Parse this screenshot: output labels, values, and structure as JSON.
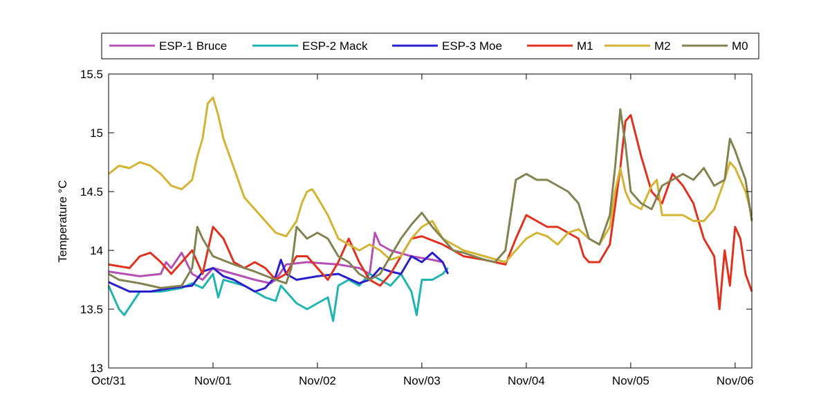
{
  "chart_data": {
    "type": "line",
    "title": "",
    "xlabel": "",
    "ylabel": "Temperature °C",
    "xlim": [
      0,
      6.16
    ],
    "ylim": [
      13,
      15.5
    ],
    "x_unit": "days since Oct/31",
    "xticks": [
      {
        "value": 0,
        "label": "Oct/31"
      },
      {
        "value": 1,
        "label": "Nov/01"
      },
      {
        "value": 2,
        "label": "Nov/02"
      },
      {
        "value": 3,
        "label": "Nov/03"
      },
      {
        "value": 4,
        "label": "Nov/04"
      },
      {
        "value": 5,
        "label": "Nov/05"
      },
      {
        "value": 6,
        "label": "Nov/06"
      }
    ],
    "yticks": [
      {
        "value": 13,
        "label": "13"
      },
      {
        "value": 13.5,
        "label": "13.5"
      },
      {
        "value": 14,
        "label": "14"
      },
      {
        "value": 14.5,
        "label": "14.5"
      },
      {
        "value": 15,
        "label": "15"
      },
      {
        "value": 15.5,
        "label": "15.5"
      }
    ],
    "grid": false,
    "legend_position": "top-outside",
    "series": [
      {
        "name": "ESP-1 Bruce",
        "color": "#b450b4",
        "points": [
          [
            0,
            13.82
          ],
          [
            0.3,
            13.78
          ],
          [
            0.5,
            13.8
          ],
          [
            0.55,
            13.9
          ],
          [
            0.6,
            13.85
          ],
          [
            0.7,
            13.98
          ],
          [
            0.8,
            13.8
          ],
          [
            0.9,
            13.75
          ],
          [
            1.0,
            13.85
          ],
          [
            1.2,
            13.8
          ],
          [
            1.4,
            13.75
          ],
          [
            1.55,
            13.72
          ],
          [
            1.6,
            13.75
          ],
          [
            1.7,
            13.88
          ],
          [
            1.9,
            13.9
          ],
          [
            2.2,
            13.88
          ],
          [
            2.4,
            13.85
          ],
          [
            2.5,
            13.8
          ],
          [
            2.55,
            14.15
          ],
          [
            2.6,
            14.05
          ],
          [
            2.7,
            14.0
          ],
          [
            2.9,
            13.95
          ],
          [
            3.1,
            13.92
          ],
          [
            3.2,
            13.9
          ]
        ]
      },
      {
        "name": "ESP-2 Mack",
        "color": "#20b4b0",
        "points": [
          [
            0,
            13.7
          ],
          [
            0.1,
            13.5
          ],
          [
            0.15,
            13.45
          ],
          [
            0.3,
            13.65
          ],
          [
            0.5,
            13.65
          ],
          [
            0.7,
            13.68
          ],
          [
            0.8,
            13.72
          ],
          [
            0.9,
            13.68
          ],
          [
            1.0,
            13.8
          ],
          [
            1.05,
            13.6
          ],
          [
            1.1,
            13.75
          ],
          [
            1.3,
            13.7
          ],
          [
            1.5,
            13.6
          ],
          [
            1.6,
            13.57
          ],
          [
            1.65,
            13.7
          ],
          [
            1.8,
            13.55
          ],
          [
            1.9,
            13.5
          ],
          [
            2.0,
            13.55
          ],
          [
            2.1,
            13.6
          ],
          [
            2.15,
            13.4
          ],
          [
            2.2,
            13.7
          ],
          [
            2.3,
            13.75
          ],
          [
            2.4,
            13.7
          ],
          [
            2.5,
            13.8
          ],
          [
            2.6,
            13.75
          ],
          [
            2.7,
            13.7
          ],
          [
            2.8,
            13.8
          ],
          [
            2.9,
            13.65
          ],
          [
            2.95,
            13.45
          ],
          [
            3.0,
            13.75
          ],
          [
            3.1,
            13.75
          ],
          [
            3.2,
            13.8
          ],
          [
            3.25,
            13.85
          ]
        ]
      },
      {
        "name": "ESP-3 Moe",
        "color": "#2a1ec8",
        "points": [
          [
            0,
            13.73
          ],
          [
            0.2,
            13.65
          ],
          [
            0.4,
            13.65
          ],
          [
            0.6,
            13.68
          ],
          [
            0.8,
            13.7
          ],
          [
            0.9,
            13.82
          ],
          [
            1.0,
            13.85
          ],
          [
            1.1,
            13.78
          ],
          [
            1.2,
            13.75
          ],
          [
            1.4,
            13.65
          ],
          [
            1.5,
            13.68
          ],
          [
            1.6,
            13.78
          ],
          [
            1.65,
            13.92
          ],
          [
            1.7,
            13.8
          ],
          [
            1.8,
            13.75
          ],
          [
            2.0,
            13.78
          ],
          [
            2.2,
            13.8
          ],
          [
            2.4,
            13.72
          ],
          [
            2.5,
            13.75
          ],
          [
            2.6,
            13.85
          ],
          [
            2.7,
            13.82
          ],
          [
            2.8,
            13.8
          ],
          [
            2.9,
            13.95
          ],
          [
            3.0,
            13.9
          ],
          [
            3.1,
            13.98
          ],
          [
            3.2,
            13.9
          ],
          [
            3.25,
            13.8
          ]
        ]
      },
      {
        "name": "M1",
        "color": "#e0301e",
        "points": [
          [
            0,
            13.88
          ],
          [
            0.2,
            13.85
          ],
          [
            0.3,
            13.95
          ],
          [
            0.4,
            13.98
          ],
          [
            0.5,
            13.9
          ],
          [
            0.6,
            13.8
          ],
          [
            0.7,
            13.9
          ],
          [
            0.8,
            14.0
          ],
          [
            0.9,
            13.8
          ],
          [
            1.0,
            14.2
          ],
          [
            1.1,
            14.1
          ],
          [
            1.2,
            13.9
          ],
          [
            1.3,
            13.85
          ],
          [
            1.4,
            13.9
          ],
          [
            1.5,
            13.85
          ],
          [
            1.6,
            13.75
          ],
          [
            1.7,
            13.8
          ],
          [
            1.8,
            13.95
          ],
          [
            1.9,
            13.95
          ],
          [
            2.0,
            13.85
          ],
          [
            2.1,
            13.75
          ],
          [
            2.2,
            13.9
          ],
          [
            2.3,
            14.1
          ],
          [
            2.4,
            13.9
          ],
          [
            2.5,
            13.75
          ],
          [
            2.6,
            13.7
          ],
          [
            2.7,
            13.8
          ],
          [
            2.8,
            13.95
          ],
          [
            2.9,
            14.1
          ],
          [
            3.0,
            14.12
          ],
          [
            3.2,
            14.05
          ],
          [
            3.4,
            13.95
          ],
          [
            3.6,
            13.92
          ],
          [
            3.8,
            13.88
          ],
          [
            3.9,
            14.1
          ],
          [
            4.0,
            14.3
          ],
          [
            4.1,
            14.25
          ],
          [
            4.2,
            14.2
          ],
          [
            4.3,
            14.2
          ],
          [
            4.4,
            14.15
          ],
          [
            4.5,
            14.1
          ],
          [
            4.55,
            13.95
          ],
          [
            4.6,
            13.9
          ],
          [
            4.7,
            13.9
          ],
          [
            4.8,
            14.05
          ],
          [
            4.9,
            14.7
          ],
          [
            4.95,
            15.1
          ],
          [
            5.0,
            15.15
          ],
          [
            5.1,
            14.8
          ],
          [
            5.2,
            14.5
          ],
          [
            5.3,
            14.4
          ],
          [
            5.4,
            14.65
          ],
          [
            5.5,
            14.55
          ],
          [
            5.6,
            14.4
          ],
          [
            5.7,
            14.1
          ],
          [
            5.8,
            13.95
          ],
          [
            5.85,
            13.5
          ],
          [
            5.9,
            14.0
          ],
          [
            5.95,
            13.7
          ],
          [
            6.0,
            14.2
          ],
          [
            6.05,
            14.1
          ],
          [
            6.1,
            13.8
          ],
          [
            6.16,
            13.65
          ]
        ]
      },
      {
        "name": "M2",
        "color": "#d2b432",
        "points": [
          [
            0,
            14.65
          ],
          [
            0.1,
            14.72
          ],
          [
            0.2,
            14.7
          ],
          [
            0.3,
            14.75
          ],
          [
            0.4,
            14.72
          ],
          [
            0.5,
            14.65
          ],
          [
            0.6,
            14.55
          ],
          [
            0.7,
            14.52
          ],
          [
            0.8,
            14.6
          ],
          [
            0.85,
            14.8
          ],
          [
            0.9,
            14.95
          ],
          [
            0.95,
            15.25
          ],
          [
            1.0,
            15.3
          ],
          [
            1.05,
            15.15
          ],
          [
            1.1,
            14.95
          ],
          [
            1.2,
            14.7
          ],
          [
            1.3,
            14.45
          ],
          [
            1.4,
            14.35
          ],
          [
            1.5,
            14.25
          ],
          [
            1.6,
            14.15
          ],
          [
            1.7,
            14.12
          ],
          [
            1.8,
            14.25
          ],
          [
            1.85,
            14.4
          ],
          [
            1.9,
            14.5
          ],
          [
            1.95,
            14.52
          ],
          [
            2.0,
            14.45
          ],
          [
            2.1,
            14.3
          ],
          [
            2.2,
            14.1
          ],
          [
            2.3,
            14.05
          ],
          [
            2.4,
            14.0
          ],
          [
            2.5,
            14.05
          ],
          [
            2.6,
            14.0
          ],
          [
            2.7,
            13.92
          ],
          [
            2.8,
            13.95
          ],
          [
            2.9,
            14.1
          ],
          [
            3.0,
            14.2
          ],
          [
            3.1,
            14.25
          ],
          [
            3.2,
            14.1
          ],
          [
            3.4,
            14.0
          ],
          [
            3.6,
            13.95
          ],
          [
            3.8,
            13.9
          ],
          [
            3.9,
            14.0
          ],
          [
            4.0,
            14.1
          ],
          [
            4.1,
            14.15
          ],
          [
            4.2,
            14.12
          ],
          [
            4.3,
            14.05
          ],
          [
            4.4,
            14.15
          ],
          [
            4.5,
            14.18
          ],
          [
            4.6,
            14.1
          ],
          [
            4.7,
            14.05
          ],
          [
            4.8,
            14.2
          ],
          [
            4.85,
            14.5
          ],
          [
            4.9,
            14.7
          ],
          [
            4.95,
            14.5
          ],
          [
            5.0,
            14.4
          ],
          [
            5.1,
            14.35
          ],
          [
            5.2,
            14.55
          ],
          [
            5.25,
            14.6
          ],
          [
            5.3,
            14.3
          ],
          [
            5.4,
            14.3
          ],
          [
            5.5,
            14.3
          ],
          [
            5.6,
            14.25
          ],
          [
            5.7,
            14.25
          ],
          [
            5.8,
            14.35
          ],
          [
            5.9,
            14.6
          ],
          [
            5.95,
            14.75
          ],
          [
            6.0,
            14.7
          ],
          [
            6.1,
            14.5
          ],
          [
            6.16,
            14.3
          ]
        ]
      },
      {
        "name": "M0",
        "color": "#828250",
        "points": [
          [
            0,
            13.8
          ],
          [
            0.1,
            13.75
          ],
          [
            0.3,
            13.72
          ],
          [
            0.5,
            13.68
          ],
          [
            0.7,
            13.7
          ],
          [
            0.8,
            13.85
          ],
          [
            0.85,
            14.2
          ],
          [
            0.9,
            14.1
          ],
          [
            1.0,
            13.95
          ],
          [
            1.2,
            13.88
          ],
          [
            1.4,
            13.82
          ],
          [
            1.6,
            13.75
          ],
          [
            1.7,
            13.72
          ],
          [
            1.75,
            13.85
          ],
          [
            1.8,
            14.2
          ],
          [
            1.9,
            14.1
          ],
          [
            2.0,
            14.15
          ],
          [
            2.1,
            14.1
          ],
          [
            2.2,
            13.95
          ],
          [
            2.3,
            13.9
          ],
          [
            2.4,
            13.8
          ],
          [
            2.5,
            13.75
          ],
          [
            2.6,
            13.8
          ],
          [
            2.7,
            13.95
          ],
          [
            2.8,
            14.1
          ],
          [
            2.9,
            14.22
          ],
          [
            3.0,
            14.32
          ],
          [
            3.1,
            14.2
          ],
          [
            3.2,
            14.1
          ],
          [
            3.3,
            14.0
          ],
          [
            3.4,
            13.98
          ],
          [
            3.5,
            13.95
          ],
          [
            3.6,
            13.92
          ],
          [
            3.7,
            13.9
          ],
          [
            3.8,
            14.0
          ],
          [
            3.85,
            14.3
          ],
          [
            3.9,
            14.6
          ],
          [
            4.0,
            14.65
          ],
          [
            4.1,
            14.6
          ],
          [
            4.2,
            14.6
          ],
          [
            4.3,
            14.55
          ],
          [
            4.4,
            14.5
          ],
          [
            4.5,
            14.4
          ],
          [
            4.6,
            14.1
          ],
          [
            4.7,
            14.05
          ],
          [
            4.8,
            14.3
          ],
          [
            4.85,
            14.7
          ],
          [
            4.9,
            15.2
          ],
          [
            4.95,
            14.9
          ],
          [
            5.0,
            14.5
          ],
          [
            5.1,
            14.4
          ],
          [
            5.2,
            14.35
          ],
          [
            5.3,
            14.55
          ],
          [
            5.4,
            14.6
          ],
          [
            5.5,
            14.65
          ],
          [
            5.6,
            14.6
          ],
          [
            5.7,
            14.7
          ],
          [
            5.8,
            14.55
          ],
          [
            5.9,
            14.6
          ],
          [
            5.95,
            14.95
          ],
          [
            6.0,
            14.85
          ],
          [
            6.1,
            14.6
          ],
          [
            6.16,
            14.25
          ]
        ]
      }
    ]
  }
}
